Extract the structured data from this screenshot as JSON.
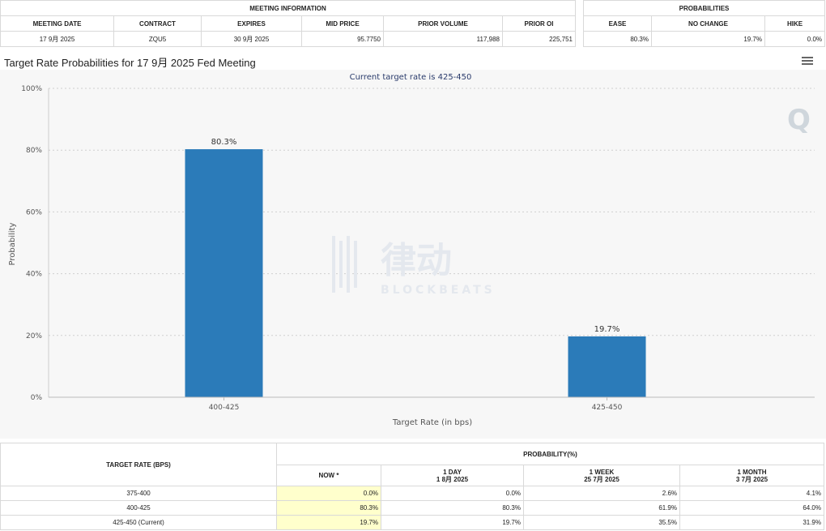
{
  "meeting": {
    "section_title": "MEETING INFORMATION",
    "headers": [
      "MEETING DATE",
      "CONTRACT",
      "EXPIRES",
      "MID PRICE",
      "PRIOR VOLUME",
      "PRIOR OI"
    ],
    "row": [
      "17 9月 2025",
      "ZQU5",
      "30 9月 2025",
      "95.7750",
      "117,988",
      "225,751"
    ]
  },
  "probabilities": {
    "section_title": "PROBABILITIES",
    "headers": [
      "EASE",
      "NO CHANGE",
      "HIKE"
    ],
    "row": [
      "80.3%",
      "19.7%",
      "0.0%"
    ]
  },
  "page_title": "Target Rate Probabilities for 17 9月 2025 Fed Meeting",
  "chart_data": {
    "type": "bar",
    "title": "",
    "subtitle": "Current target rate is 425-450",
    "xlabel": "Target Rate (in bps)",
    "ylabel": "Probability",
    "ylim": [
      0,
      100
    ],
    "yticks": [
      "0%",
      "20%",
      "40%",
      "60%",
      "80%",
      "100%"
    ],
    "categories": [
      "400-425",
      "425-450"
    ],
    "values": [
      80.3,
      19.7
    ],
    "data_labels": [
      "80.3%",
      "19.7%"
    ],
    "bar_color": "#2b7bb9",
    "grid": true,
    "watermark": "律动 BLOCKBEATS"
  },
  "bottom_table": {
    "target_rate_header": "TARGET RATE (BPS)",
    "probability_header": "PROBABILITY(%)",
    "col_headers": [
      {
        "line1": "NOW *",
        "line2": ""
      },
      {
        "line1": "1 DAY",
        "line2": "1 8月 2025"
      },
      {
        "line1": "1 WEEK",
        "line2": "25 7月 2025"
      },
      {
        "line1": "1 MONTH",
        "line2": "3 7月 2025"
      }
    ],
    "rows": [
      {
        "rate": "375-400",
        "now": "0.0%",
        "day": "0.0%",
        "week": "2.6%",
        "month": "4.1%"
      },
      {
        "rate": "400-425",
        "now": "80.3%",
        "day": "80.3%",
        "week": "61.9%",
        "month": "64.0%"
      },
      {
        "rate": "425-450 (Current)",
        "now": "19.7%",
        "day": "19.7%",
        "week": "35.5%",
        "month": "31.9%"
      }
    ]
  }
}
